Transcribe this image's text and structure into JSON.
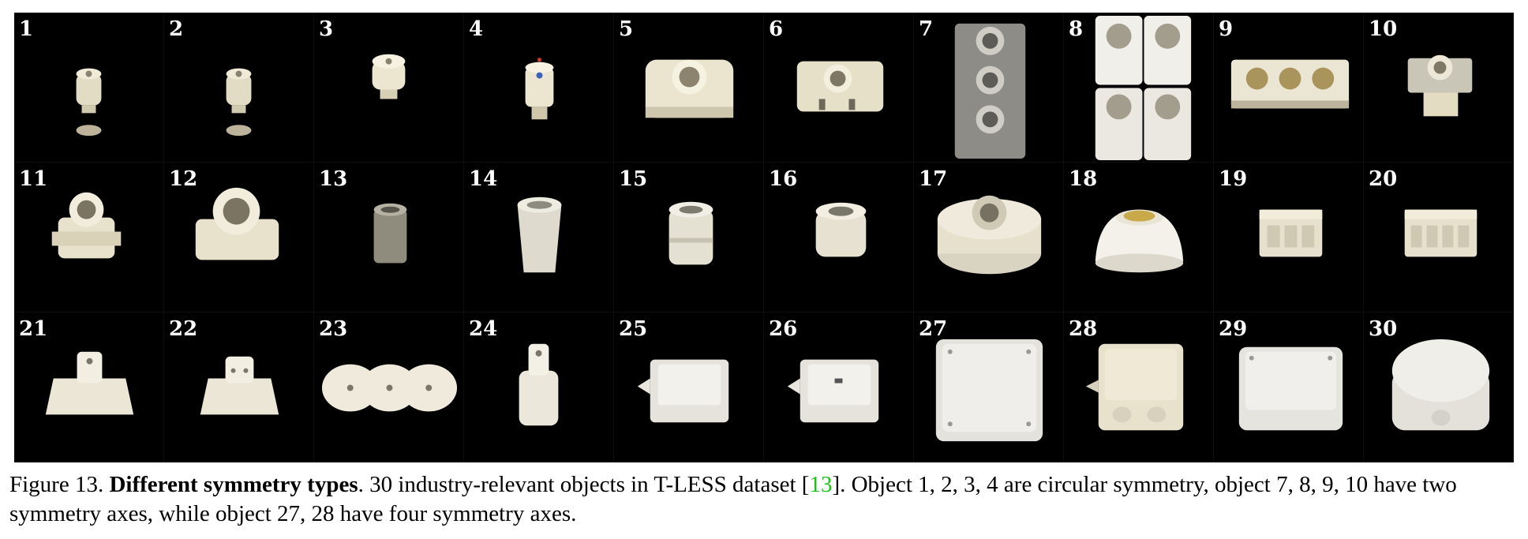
{
  "figure": {
    "panels": [
      {
        "number": "1",
        "kind": "fuse-small"
      },
      {
        "number": "2",
        "kind": "fuse-small"
      },
      {
        "number": "3",
        "kind": "fuse-cap"
      },
      {
        "number": "4",
        "kind": "fuse-blue-dot"
      },
      {
        "number": "5",
        "kind": "socket-wide"
      },
      {
        "number": "6",
        "kind": "socket-wide-2"
      },
      {
        "number": "7",
        "kind": "triple-stack-grey"
      },
      {
        "number": "8",
        "kind": "quad-white"
      },
      {
        "number": "9",
        "kind": "triple-row"
      },
      {
        "number": "10",
        "kind": "small-socket"
      },
      {
        "number": "11",
        "kind": "socket-base"
      },
      {
        "number": "12",
        "kind": "socket-base-big"
      },
      {
        "number": "13",
        "kind": "cylinder-grey"
      },
      {
        "number": "14",
        "kind": "cylinder-white"
      },
      {
        "number": "15",
        "kind": "cylinder-white-2"
      },
      {
        "number": "16",
        "kind": "cylinder-short"
      },
      {
        "number": "17",
        "kind": "round-base"
      },
      {
        "number": "18",
        "kind": "round-base-yellow"
      },
      {
        "number": "19",
        "kind": "block-3"
      },
      {
        "number": "20",
        "kind": "block-4"
      },
      {
        "number": "21",
        "kind": "outlet-tee"
      },
      {
        "number": "22",
        "kind": "outlet-tee-2"
      },
      {
        "number": "23",
        "kind": "outlet-triple"
      },
      {
        "number": "24",
        "kind": "tower"
      },
      {
        "number": "25",
        "kind": "switch"
      },
      {
        "number": "26",
        "kind": "switch-2"
      },
      {
        "number": "27",
        "kind": "box-big"
      },
      {
        "number": "28",
        "kind": "box-cable"
      },
      {
        "number": "29",
        "kind": "box-flat"
      },
      {
        "number": "30",
        "kind": "round-box"
      }
    ]
  },
  "caption": {
    "label": "Figure 13.",
    "bold": "Different symmetry types",
    "text1": ". 30 industry-relevant objects in T-LESS dataset [",
    "cite": "13",
    "text2": "]. Object 1, 2, 3, 4 are circular symmetry, object 7, 8, 9, 10 have two symmetry axes, while object 27, 28 have four symmetry axes."
  }
}
